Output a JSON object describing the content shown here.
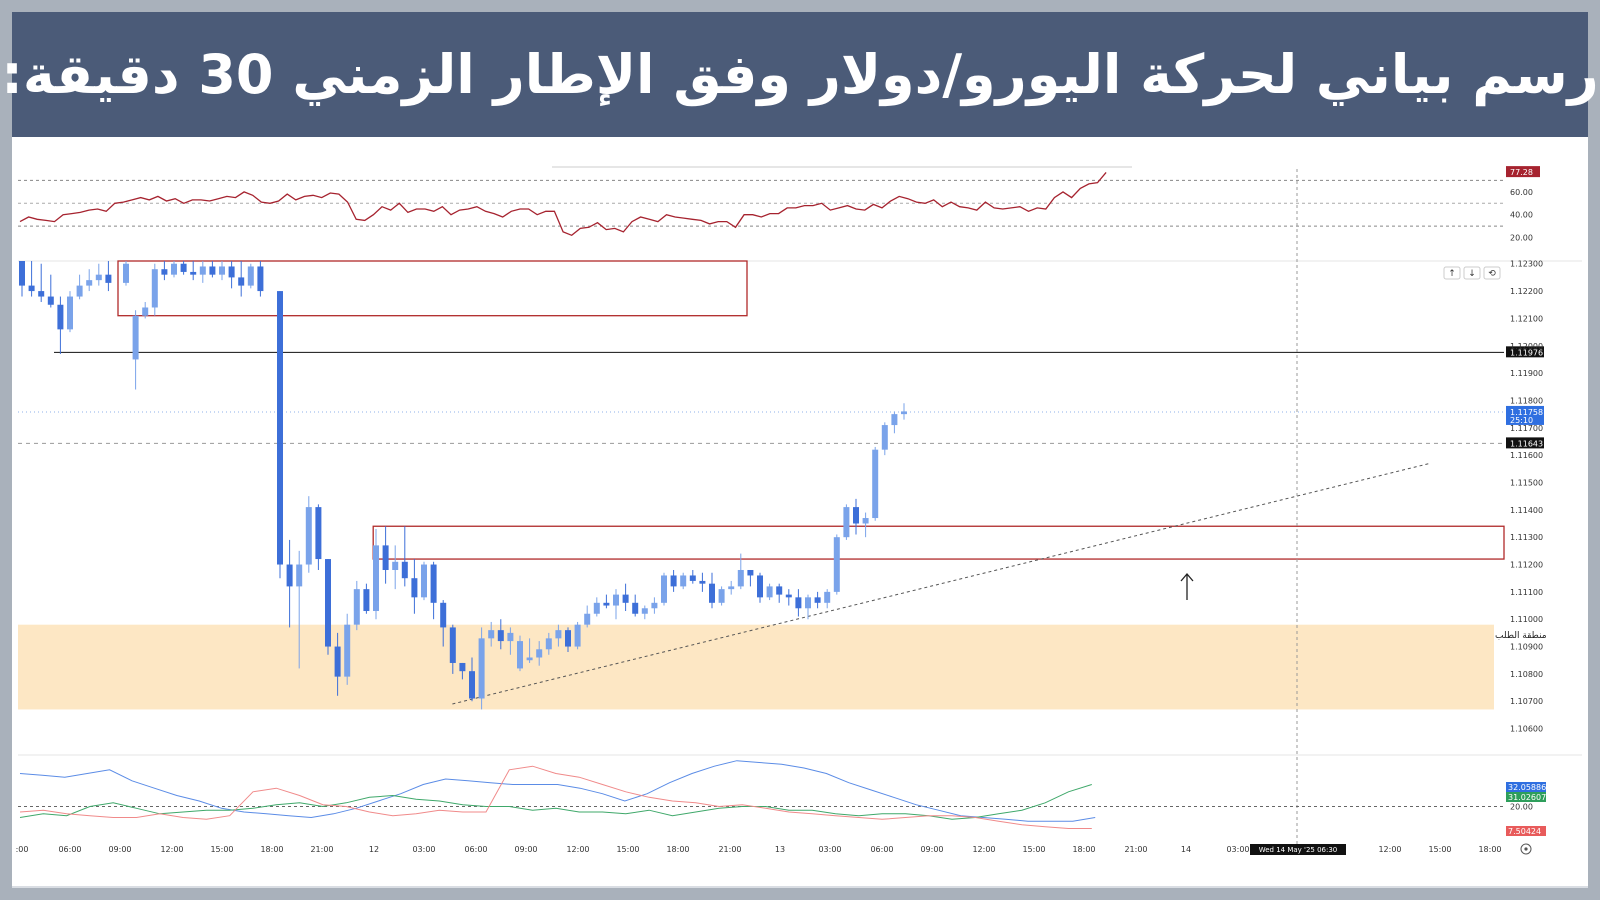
{
  "banner": {
    "title": "رسم بياني لحركة اليورو/دولار وفق الإطار الزمني 30 دقيقة:"
  },
  "colors": {
    "bull": "#7aa3ea",
    "bear": "#3d6fd8",
    "zone_fill": "#fde7c4",
    "box_stroke": "#b02a2a",
    "rsi_line": "#a6232f",
    "adx_line": "#5b8ce6",
    "di_plus": "#3fa86a",
    "di_minus": "#f08a8a"
  },
  "labels": {
    "demand_zone": "منطقة الطلب"
  },
  "chart_data": {
    "type": "candlestick",
    "symbol": "EURUSD",
    "timeframe": "30m",
    "ylim": [
      1.1054,
      1.1231
    ],
    "grid": false,
    "y_ticks": [
      "1.12300",
      "1.12200",
      "1.12100",
      "1.12000",
      "1.11900",
      "1.11800",
      "1.11700",
      "1.11600",
      "1.11500",
      "1.11400",
      "1.11300",
      "1.11200",
      "1.11100",
      "1.11000",
      "1.10900",
      "1.10800",
      "1.10700",
      "1.10600"
    ],
    "x_ticks": [
      ":00",
      "06:00",
      "09:00",
      "12:00",
      "15:00",
      "18:00",
      "21:00",
      "12",
      "03:00",
      "06:00",
      "09:00",
      "12:00",
      "15:00",
      "18:00",
      "21:00",
      "13",
      "03:00",
      "06:00",
      "09:00",
      "12:00",
      "15:00",
      "18:00",
      "21:00",
      "14",
      "03:00",
      "12:00",
      "15:00",
      "18:00"
    ],
    "candles_approx": [
      [
        1.1231,
        1.1231,
        1.1218,
        1.1222
      ],
      [
        1.1222,
        1.1231,
        1.1218,
        1.122
      ],
      [
        1.122,
        1.123,
        1.1216,
        1.1218
      ],
      [
        1.1218,
        1.1226,
        1.1214,
        1.1215
      ],
      [
        1.1215,
        1.1218,
        1.1197,
        1.1206
      ],
      [
        1.1206,
        1.122,
        1.1205,
        1.1218
      ],
      [
        1.1218,
        1.1226,
        1.1217,
        1.1222
      ],
      [
        1.1222,
        1.1228,
        1.122,
        1.1224
      ],
      [
        1.1224,
        1.123,
        1.1222,
        1.1226
      ],
      [
        1.1226,
        1.1231,
        1.122,
        1.1223
      ],
      [
        1.1223,
        1.1231,
        1.1222,
        1.123
      ],
      [
        1.1195,
        1.1213,
        1.1184,
        1.1211
      ],
      [
        1.1211,
        1.1216,
        1.121,
        1.1214
      ],
      [
        1.1214,
        1.123,
        1.1211,
        1.1228
      ],
      [
        1.1228,
        1.1231,
        1.1224,
        1.1226
      ],
      [
        1.1226,
        1.1231,
        1.1225,
        1.123
      ],
      [
        1.123,
        1.1231,
        1.1226,
        1.1227
      ],
      [
        1.1227,
        1.1231,
        1.1224,
        1.1226
      ],
      [
        1.1226,
        1.1231,
        1.1223,
        1.1229
      ],
      [
        1.1229,
        1.1231,
        1.1225,
        1.1226
      ],
      [
        1.1226,
        1.1231,
        1.1224,
        1.1229
      ],
      [
        1.1229,
        1.1231,
        1.1221,
        1.1225
      ],
      [
        1.1225,
        1.1231,
        1.1218,
        1.1222
      ],
      [
        1.1222,
        1.123,
        1.1221,
        1.1229
      ],
      [
        1.1229,
        1.1231,
        1.1218,
        1.122
      ],
      [
        1.122,
        1.122,
        1.1115,
        1.112
      ],
      [
        1.112,
        1.1129,
        1.1097,
        1.1112
      ],
      [
        1.1112,
        1.1125,
        1.1082,
        1.112
      ],
      [
        1.112,
        1.1145,
        1.1117,
        1.1141
      ],
      [
        1.1141,
        1.1142,
        1.1118,
        1.1122
      ],
      [
        1.1122,
        1.1122,
        1.1087,
        1.109
      ],
      [
        1.109,
        1.1095,
        1.1072,
        1.1079
      ],
      [
        1.1079,
        1.1102,
        1.1076,
        1.1098
      ],
      [
        1.1098,
        1.1114,
        1.1096,
        1.1111
      ],
      [
        1.1111,
        1.1113,
        1.1102,
        1.1103
      ],
      [
        1.1103,
        1.1133,
        1.11,
        1.1127
      ],
      [
        1.1127,
        1.1134,
        1.1113,
        1.1118
      ],
      [
        1.1118,
        1.1127,
        1.1111,
        1.1121
      ],
      [
        1.1121,
        1.1134,
        1.1112,
        1.1115
      ],
      [
        1.1115,
        1.1122,
        1.1102,
        1.1108
      ],
      [
        1.1108,
        1.1121,
        1.1107,
        1.112
      ],
      [
        1.112,
        1.1121,
        1.11,
        1.1106
      ],
      [
        1.1106,
        1.1107,
        1.109,
        1.1097
      ],
      [
        1.1097,
        1.1098,
        1.108,
        1.1084
      ],
      [
        1.1084,
        1.1084,
        1.1078,
        1.1081
      ],
      [
        1.1081,
        1.1086,
        1.107,
        1.1071
      ],
      [
        1.1071,
        1.1097,
        1.1067,
        1.1093
      ],
      [
        1.1093,
        1.1099,
        1.109,
        1.1096
      ],
      [
        1.1096,
        1.11,
        1.1089,
        1.1092
      ],
      [
        1.1092,
        1.1097,
        1.1087,
        1.1095
      ],
      [
        1.1082,
        1.1094,
        1.1081,
        1.1092
      ],
      [
        1.1085,
        1.1093,
        1.1084,
        1.1086
      ],
      [
        1.1086,
        1.1092,
        1.1083,
        1.1089
      ],
      [
        1.1089,
        1.1095,
        1.1087,
        1.1093
      ],
      [
        1.1093,
        1.1098,
        1.109,
        1.1096
      ],
      [
        1.1096,
        1.1097,
        1.1088,
        1.109
      ],
      [
        1.109,
        1.1099,
        1.1089,
        1.1098
      ],
      [
        1.1098,
        1.1105,
        1.1097,
        1.1102
      ],
      [
        1.1102,
        1.1108,
        1.1101,
        1.1106
      ],
      [
        1.1106,
        1.1109,
        1.1104,
        1.1105
      ],
      [
        1.1105,
        1.1111,
        1.11,
        1.1109
      ],
      [
        1.1109,
        1.1113,
        1.1103,
        1.1106
      ],
      [
        1.1106,
        1.1109,
        1.1101,
        1.1102
      ],
      [
        1.1102,
        1.1105,
        1.11,
        1.1104
      ],
      [
        1.1104,
        1.1108,
        1.1102,
        1.1106
      ],
      [
        1.1106,
        1.1117,
        1.1105,
        1.1116
      ],
      [
        1.1116,
        1.1118,
        1.111,
        1.1112
      ],
      [
        1.1112,
        1.1117,
        1.1111,
        1.1116
      ],
      [
        1.1116,
        1.1118,
        1.1113,
        1.1114
      ],
      [
        1.1114,
        1.1117,
        1.111,
        1.1113
      ],
      [
        1.1113,
        1.1117,
        1.1104,
        1.1106
      ],
      [
        1.1106,
        1.1112,
        1.1105,
        1.1111
      ],
      [
        1.1111,
        1.1114,
        1.1109,
        1.1112
      ],
      [
        1.1112,
        1.1124,
        1.1111,
        1.1118
      ],
      [
        1.1118,
        1.1118,
        1.1112,
        1.1116
      ],
      [
        1.1116,
        1.1117,
        1.1106,
        1.1108
      ],
      [
        1.1108,
        1.1113,
        1.1107,
        1.1112
      ],
      [
        1.1112,
        1.1113,
        1.1106,
        1.1109
      ],
      [
        1.1109,
        1.1111,
        1.1105,
        1.1108
      ],
      [
        1.1108,
        1.1111,
        1.1101,
        1.1104
      ],
      [
        1.1104,
        1.1109,
        1.11,
        1.1108
      ],
      [
        1.1108,
        1.111,
        1.1104,
        1.1106
      ],
      [
        1.1106,
        1.1111,
        1.1104,
        1.111
      ],
      [
        1.111,
        1.1131,
        1.1109,
        1.113
      ],
      [
        1.113,
        1.1142,
        1.1129,
        1.1141
      ],
      [
        1.1141,
        1.1144,
        1.1131,
        1.1135
      ],
      [
        1.1135,
        1.1139,
        1.113,
        1.1137
      ],
      [
        1.1137,
        1.1163,
        1.1136,
        1.1162
      ],
      [
        1.1162,
        1.1172,
        1.116,
        1.1171
      ],
      [
        1.1171,
        1.1176,
        1.1168,
        1.1175
      ],
      [
        1.1175,
        1.1179,
        1.1173,
        1.1176
      ]
    ],
    "horizontal_lines": [
      {
        "price": 1.11976,
        "label": "1.11976",
        "style": "solid",
        "color": "#111111"
      },
      {
        "price": 1.11643,
        "label": "1.11643",
        "style": "dashed",
        "color": "#999999"
      },
      {
        "price": 1.11758,
        "label": "1.11758",
        "sublabel": "25:10",
        "style": "dotted",
        "color": "#8fb0e8"
      }
    ],
    "zones": [
      {
        "kind": "demand",
        "from": 1.1067,
        "to": 1.1098,
        "label_ref": "labels.demand_zone"
      }
    ],
    "boxes": [
      {
        "price_top": 1.1231,
        "price_bottom": 1.1211,
        "start_index": 10,
        "end_index": 29
      },
      {
        "price_top": 1.1134,
        "price_bottom": 1.1122,
        "start_index": 37,
        "end_index": 120
      }
    ],
    "trendline": {
      "from": [
        44,
        1.1069
      ],
      "to": [
        117,
        1.1157
      ]
    },
    "up_arrow_index": 82,
    "rsi": {
      "ticks": [
        "60.00",
        "40.00",
        "20.00"
      ],
      "current": "77.28",
      "levels": [
        70,
        30
      ],
      "values": [
        34,
        38,
        36,
        35,
        34,
        40,
        41,
        42,
        44,
        45,
        43,
        50,
        51,
        53,
        55,
        53,
        56,
        52,
        54,
        50,
        53,
        53,
        52,
        54,
        56,
        55,
        60,
        57,
        51,
        50,
        52,
        58,
        53,
        56,
        57,
        55,
        59,
        58,
        51,
        36,
        35,
        40,
        47,
        44,
        50,
        42,
        45,
        45,
        43,
        47,
        40,
        44,
        45,
        47,
        43,
        41,
        38,
        43,
        45,
        45,
        40,
        43,
        43,
        25,
        22,
        28,
        29,
        33,
        27,
        28,
        25,
        34,
        38,
        36,
        34,
        40,
        38,
        37,
        36,
        35,
        32,
        34,
        34,
        29,
        40,
        40,
        38,
        41,
        41,
        46,
        46,
        48,
        48,
        50,
        44,
        46,
        48,
        45,
        44,
        49,
        46,
        52,
        56,
        54,
        51,
        50,
        53,
        47,
        51,
        47,
        46,
        44,
        51,
        46,
        45,
        46,
        47,
        43,
        46,
        45,
        55,
        60,
        55,
        63,
        67,
        68,
        77
      ]
    },
    "adx": {
      "ticks": [
        "20.00"
      ],
      "current": [
        "32.05886",
        "31.02607",
        "7.50424"
      ],
      "adx_values": [
        38,
        37,
        36,
        38,
        40,
        34,
        30,
        26,
        23,
        19,
        17,
        16,
        15,
        14,
        16,
        19,
        23,
        27,
        32,
        35,
        34,
        33,
        32,
        32,
        32,
        30,
        27,
        23,
        27,
        33,
        38,
        42,
        45,
        44,
        43,
        41,
        38,
        33,
        29,
        25,
        21,
        18,
        15,
        14,
        13,
        12,
        12,
        12,
        14
      ],
      "di_plus_values": [
        14,
        16,
        15,
        20,
        22,
        19,
        16,
        17,
        18,
        18,
        19,
        21,
        22,
        20,
        22,
        25,
        26,
        24,
        23,
        21,
        20,
        20,
        18,
        19,
        17,
        17,
        16,
        18,
        15,
        17,
        19,
        20,
        20,
        18,
        18,
        16,
        15,
        16,
        16,
        15,
        13,
        14,
        16,
        18,
        22,
        28,
        32
      ],
      "di_minus_values": [
        17,
        18,
        16,
        15,
        14,
        14,
        16,
        14,
        13,
        15,
        28,
        30,
        26,
        21,
        20,
        17,
        15,
        16,
        18,
        17,
        17,
        40,
        42,
        38,
        36,
        32,
        28,
        25,
        23,
        22,
        20,
        21,
        19,
        17,
        16,
        15,
        14,
        13,
        14,
        15,
        15,
        14,
        12,
        10,
        9,
        8,
        8
      ]
    },
    "crosshair_label": "Wed 14 May '25   06:30",
    "toolbar_icons": [
      "arrow-up-icon",
      "arrow-down-icon",
      "reset-icon"
    ]
  }
}
